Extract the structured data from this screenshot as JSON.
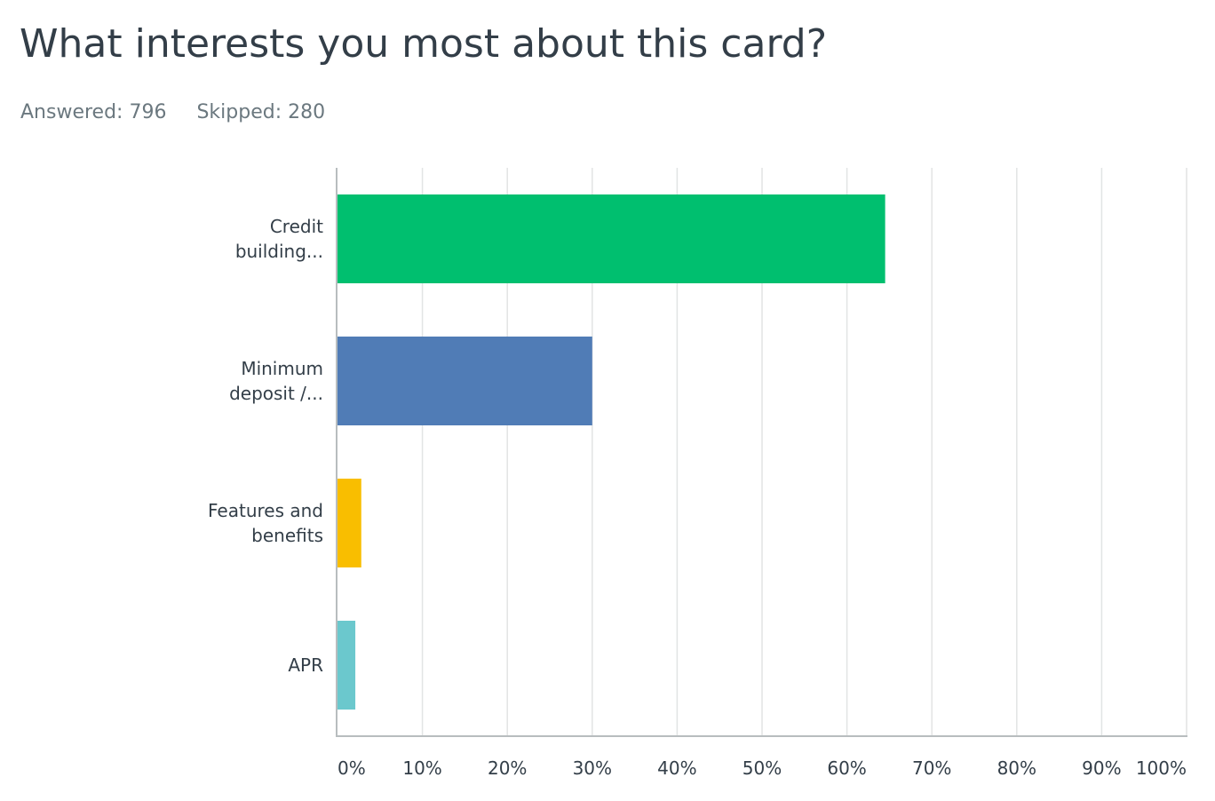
{
  "question": {
    "title": "What interests you most about this card?",
    "answered_label": "Answered:",
    "answered_value": "796",
    "skipped_label": "Skipped:",
    "skipped_value": "280"
  },
  "chart_data": {
    "type": "bar",
    "orientation": "horizontal",
    "title": "What interests you most about this card?",
    "xlabel": "",
    "ylabel": "",
    "categories": [
      {
        "lines": [
          "Credit",
          "building..."
        ],
        "value": 64.5,
        "color": "#00bf6f"
      },
      {
        "lines": [
          "Minimum",
          "deposit /..."
        ],
        "value": 30.0,
        "color": "#507cb6"
      },
      {
        "lines": [
          "Features and",
          "benefits"
        ],
        "value": 2.8,
        "color": "#f9be00"
      },
      {
        "lines": [
          "APR"
        ],
        "value": 2.1,
        "color": "#6bc8cd"
      }
    ],
    "xlim": [
      0,
      100
    ],
    "ticks": [
      "0%",
      "10%",
      "20%",
      "30%",
      "40%",
      "50%",
      "60%",
      "70%",
      "80%",
      "90%",
      "100%"
    ],
    "grid": true,
    "legend": "none",
    "gridColor": "#e2e4e4",
    "axisColor": "#b8bdbf"
  }
}
